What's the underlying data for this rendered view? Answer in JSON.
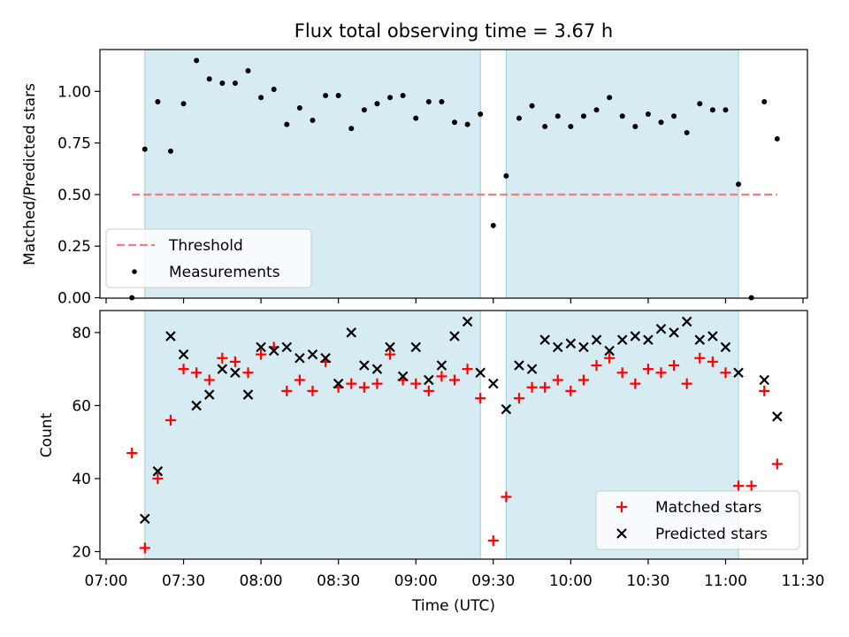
{
  "chart_data": [
    {
      "type": "scatter",
      "title": "Flux total observing time = 3.67 h",
      "ylabel": "Matched/Predicted stars",
      "xlim": [
        "07:00",
        "11:30"
      ],
      "ylim": [
        0,
        1.2
      ],
      "yticks": [
        0.0,
        0.25,
        0.5,
        0.75,
        1.0
      ],
      "ytick_labels": [
        "0.00",
        "0.25",
        "0.50",
        "0.75",
        "1.00"
      ],
      "shaded_intervals": [
        [
          "07:15",
          "09:25"
        ],
        [
          "09:35",
          "11:05"
        ]
      ],
      "grid": false,
      "legend_position": "lower-left",
      "threshold": {
        "name": "Threshold",
        "value": 0.5,
        "x_range": [
          "07:10",
          "11:20"
        ],
        "color": "#f08080"
      },
      "series": [
        {
          "name": "Measurements",
          "color": "#000000",
          "x": [
            "07:10",
            "07:15",
            "07:20",
            "07:25",
            "07:30",
            "07:35",
            "07:40",
            "07:45",
            "07:50",
            "07:55",
            "08:00",
            "08:05",
            "08:10",
            "08:15",
            "08:20",
            "08:25",
            "08:30",
            "08:35",
            "08:40",
            "08:45",
            "08:50",
            "08:55",
            "09:00",
            "09:05",
            "09:10",
            "09:15",
            "09:20",
            "09:25",
            "09:30",
            "09:35",
            "09:40",
            "09:45",
            "09:50",
            "09:55",
            "10:00",
            "10:05",
            "10:10",
            "10:15",
            "10:20",
            "10:25",
            "10:30",
            "10:35",
            "10:40",
            "10:45",
            "10:50",
            "10:55",
            "11:00",
            "11:05",
            "11:10",
            "11:15",
            "11:20"
          ],
          "y": [
            0.0,
            0.72,
            0.95,
            0.71,
            0.94,
            1.15,
            1.06,
            1.04,
            1.04,
            1.1,
            0.97,
            1.01,
            0.84,
            0.92,
            0.86,
            0.98,
            0.98,
            0.82,
            0.91,
            0.94,
            0.97,
            0.98,
            0.87,
            0.95,
            0.95,
            0.85,
            0.84,
            0.89,
            0.35,
            0.59,
            0.87,
            0.93,
            0.83,
            0.88,
            0.83,
            0.88,
            0.91,
            0.97,
            0.88,
            0.83,
            0.89,
            0.85,
            0.88,
            0.8,
            0.94,
            0.91,
            0.91,
            0.55,
            0.0,
            0.95,
            0.77
          ]
        }
      ]
    },
    {
      "type": "scatter",
      "xlabel": "Time (UTC)",
      "ylabel": "Count",
      "xlim": [
        "07:00",
        "11:30"
      ],
      "ylim": [
        18,
        86
      ],
      "yticks": [
        20,
        40,
        60,
        80
      ],
      "xtick_labels": [
        "07:00",
        "07:30",
        "08:00",
        "08:30",
        "09:00",
        "09:30",
        "10:00",
        "10:30",
        "11:00",
        "11:30"
      ],
      "shaded_intervals": [
        [
          "07:15",
          "09:25"
        ],
        [
          "09:35",
          "11:05"
        ]
      ],
      "grid": false,
      "legend_position": "lower-right",
      "series": [
        {
          "name": "Matched stars",
          "marker": "plus",
          "color": "#ff0000",
          "x": [
            "07:10",
            "07:15",
            "07:20",
            "07:25",
            "07:30",
            "07:35",
            "07:40",
            "07:45",
            "07:50",
            "07:55",
            "08:00",
            "08:05",
            "08:10",
            "08:15",
            "08:20",
            "08:25",
            "08:30",
            "08:35",
            "08:40",
            "08:45",
            "08:50",
            "08:55",
            "09:00",
            "09:05",
            "09:10",
            "09:15",
            "09:20",
            "09:25",
            "09:30",
            "09:35",
            "09:40",
            "09:45",
            "09:50",
            "09:55",
            "10:00",
            "10:05",
            "10:10",
            "10:15",
            "10:20",
            "10:25",
            "10:30",
            "10:35",
            "10:40",
            "10:45",
            "10:50",
            "10:55",
            "11:00",
            "11:05",
            "11:10",
            "11:15",
            "11:20"
          ],
          "y": [
            47,
            21,
            40,
            56,
            70,
            69,
            67,
            73,
            72,
            69,
            74,
            76,
            64,
            67,
            64,
            72,
            65,
            66,
            65,
            66,
            74,
            67,
            66,
            64,
            68,
            67,
            70,
            62,
            23,
            35,
            62,
            65,
            65,
            67,
            64,
            67,
            71,
            73,
            69,
            66,
            70,
            69,
            71,
            66,
            73,
            72,
            69,
            38,
            38,
            64,
            44
          ]
        },
        {
          "name": "Predicted stars",
          "marker": "x",
          "color": "#000000",
          "x": [
            "07:15",
            "07:20",
            "07:25",
            "07:30",
            "07:35",
            "07:40",
            "07:45",
            "07:50",
            "07:55",
            "08:00",
            "08:05",
            "08:10",
            "08:15",
            "08:20",
            "08:25",
            "08:30",
            "08:35",
            "08:40",
            "08:45",
            "08:50",
            "08:55",
            "09:00",
            "09:05",
            "09:10",
            "09:15",
            "09:20",
            "09:25",
            "09:30",
            "09:35",
            "09:40",
            "09:45",
            "09:50",
            "09:55",
            "10:00",
            "10:05",
            "10:10",
            "10:15",
            "10:20",
            "10:25",
            "10:30",
            "10:35",
            "10:40",
            "10:45",
            "10:50",
            "10:55",
            "11:00",
            "11:05",
            "11:15",
            "11:20"
          ],
          "y": [
            29,
            42,
            79,
            74,
            60,
            63,
            70,
            69,
            63,
            76,
            75,
            76,
            73,
            74,
            73,
            66,
            80,
            71,
            70,
            76,
            68,
            76,
            67,
            71,
            79,
            83,
            69,
            66,
            59,
            71,
            70,
            78,
            76,
            77,
            76,
            78,
            75,
            78,
            79,
            78,
            81,
            80,
            83,
            78,
            79,
            76,
            69,
            67,
            57
          ]
        }
      ]
    }
  ]
}
